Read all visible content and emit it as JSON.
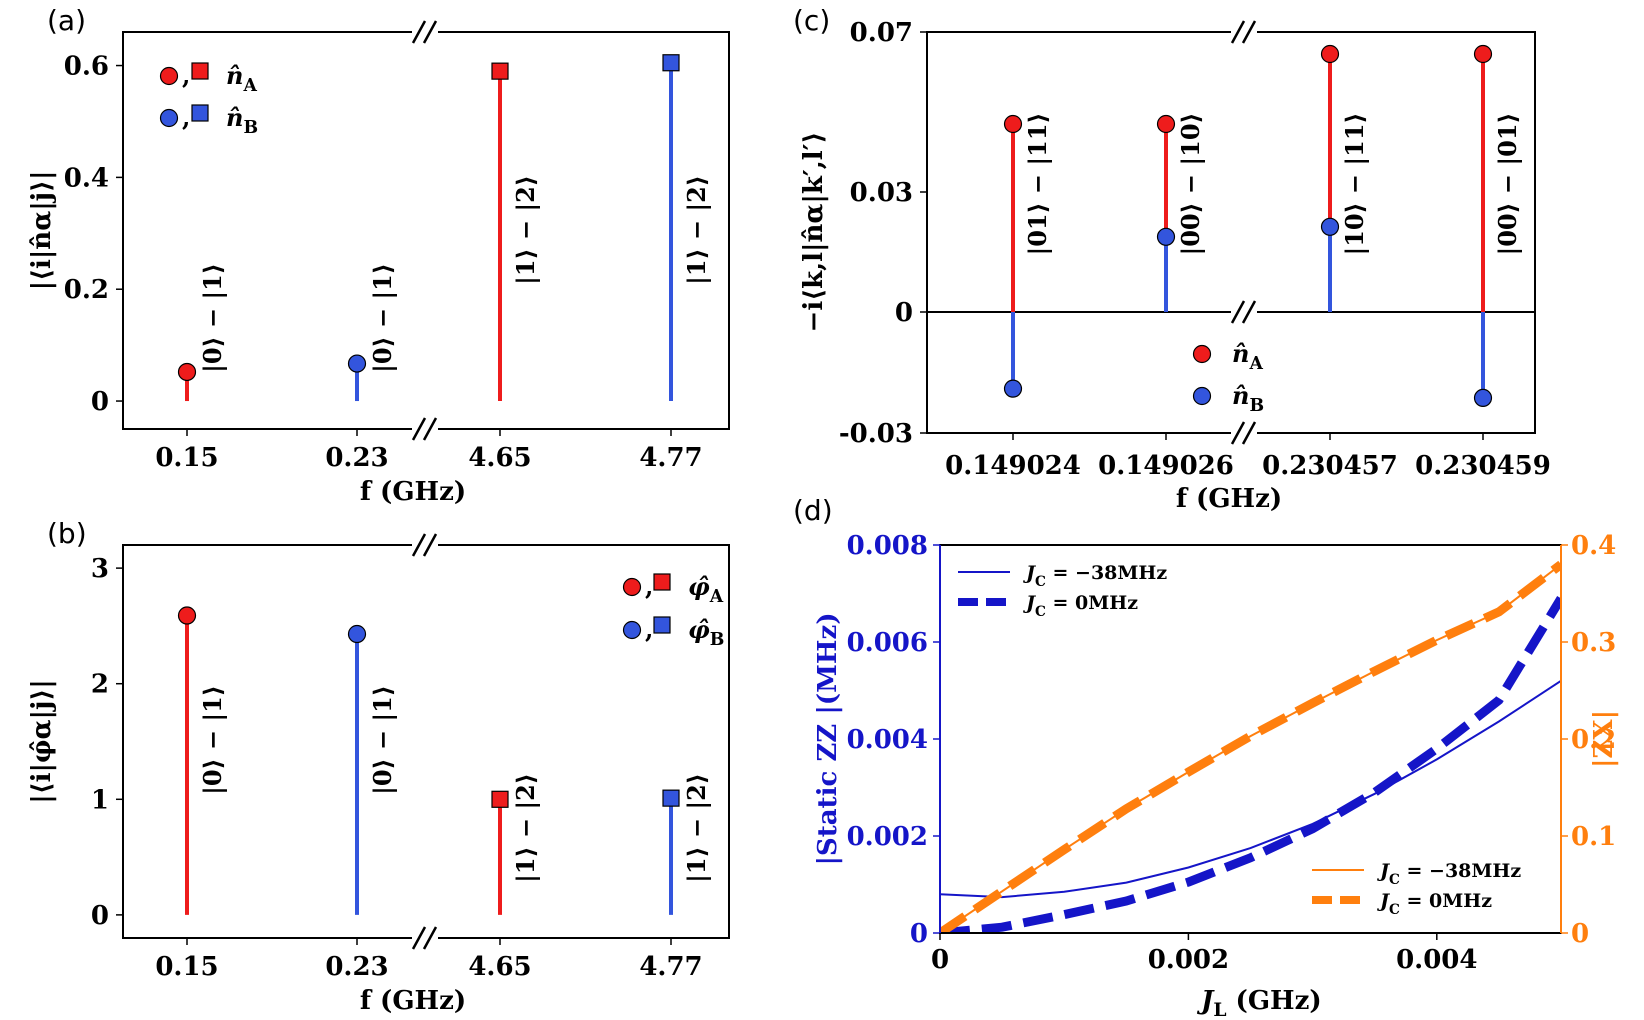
{
  "colors": {
    "red": "#ee1c1c",
    "blue": "#3355dd",
    "darkblue": "#1515c8",
    "orange": "#ff7f0e",
    "black": "#000000"
  },
  "chart_data": [
    {
      "panel_label": "(a)",
      "type": "stem",
      "xlabel": "f (GHz)",
      "ylabel": "|⟨i|n̂α|j⟩|",
      "ylim": [
        -0.05,
        0.66
      ],
      "yticks": [
        "0",
        "0.2",
        "0.4",
        "0.6"
      ],
      "categories": [
        "0.15",
        "0.23",
        "4.65",
        "4.77"
      ],
      "broken_x_axis": true,
      "stems": [
        {
          "x": "0.15",
          "value": 0.052,
          "series": "n̂A",
          "marker": "circle",
          "label": "|0⟩ − |1⟩"
        },
        {
          "x": "0.23",
          "value": 0.067,
          "series": "n̂B",
          "marker": "circle",
          "label": "|0⟩ − |1⟩"
        },
        {
          "x": "4.65",
          "value": 0.59,
          "series": "n̂A",
          "marker": "square",
          "label": "|1⟩ − |2⟩"
        },
        {
          "x": "4.77",
          "value": 0.605,
          "series": "n̂B",
          "marker": "square",
          "label": "|1⟩ − |2⟩"
        }
      ],
      "legend": [
        {
          "name": "n̂A",
          "sep": ",",
          "base": "n̂",
          "sub": "A",
          "color": "red"
        },
        {
          "name": "n̂B",
          "sep": ",",
          "base": "n̂",
          "sub": "B",
          "color": "blue"
        }
      ],
      "legend_position": "top-left"
    },
    {
      "panel_label": "(b)",
      "type": "stem",
      "xlabel": "f (GHz)",
      "ylabel": "|⟨i|φ̂α|j⟩|",
      "ylim": [
        -0.2,
        3.2
      ],
      "yticks": [
        "0",
        "1",
        "2",
        "3"
      ],
      "categories": [
        "0.15",
        "0.23",
        "4.65",
        "4.77"
      ],
      "broken_x_axis": true,
      "stems": [
        {
          "x": "0.15",
          "value": 2.59,
          "series": "φ̂A",
          "marker": "circle",
          "label": "|0⟩ − |1⟩"
        },
        {
          "x": "0.23",
          "value": 2.43,
          "series": "φ̂B",
          "marker": "circle",
          "label": "|0⟩ − |1⟩"
        },
        {
          "x": "4.65",
          "value": 1.0,
          "series": "φ̂A",
          "marker": "square",
          "label": "|1⟩ − |2⟩"
        },
        {
          "x": "4.77",
          "value": 1.01,
          "series": "φ̂B",
          "marker": "square",
          "label": "|1⟩ − |2⟩"
        }
      ],
      "legend": [
        {
          "name": "φ̂A",
          "sep": ",",
          "base": "φ̂",
          "sub": "A",
          "color": "red"
        },
        {
          "name": "φ̂B",
          "sep": ",",
          "base": "φ̂",
          "sub": "B",
          "color": "blue"
        }
      ],
      "legend_position": "top-right"
    },
    {
      "panel_label": "(c)",
      "type": "stem",
      "xlabel": "f (GHz)",
      "ylabel": "−i⟨k,l|n̂α|k′,l′⟩",
      "ylim": [
        -0.03,
        0.07
      ],
      "yticks": [
        "-0.03",
        "0",
        "0.03",
        "0.07"
      ],
      "categories": [
        "0.149024",
        "0.149026",
        "0.230457",
        "0.230459"
      ],
      "broken_x_axis": true,
      "broken_y_axis": true,
      "stems": [
        {
          "x": "0.149024",
          "a": 0.047,
          "b": -0.019,
          "label": "|01⟩ − |11⟩"
        },
        {
          "x": "0.149026",
          "a": 0.047,
          "b": 0.0188,
          "label": "|00⟩ − |10⟩"
        },
        {
          "x": "0.230457",
          "a": 0.0645,
          "b": 0.0213,
          "label": "|10⟩ − |11⟩"
        },
        {
          "x": "0.230459",
          "a": 0.0645,
          "b": -0.0213,
          "label": "|00⟩ − |01⟩"
        }
      ],
      "legend": [
        {
          "name": "n̂A",
          "base": "n̂",
          "sub": "A",
          "color": "red"
        },
        {
          "name": "n̂B",
          "base": "n̂",
          "sub": "B",
          "color": "blue"
        }
      ],
      "legend_position": "lower-center"
    },
    {
      "panel_label": "(d)",
      "type": "line",
      "xlabel": "JL (GHz)",
      "ylabel_left": "|Static ZZ |(MHz)",
      "ylabel_right": "|ZX|",
      "xlim": [
        0,
        0.005
      ],
      "xticks": [
        "0",
        "0.002",
        "0.004"
      ],
      "ylim_left": [
        0,
        0.008
      ],
      "yticks_left": [
        "0",
        "0.002",
        "0.004",
        "0.006",
        "0.008"
      ],
      "ylim_right": [
        0,
        0.4
      ],
      "yticks_right": [
        "0",
        "0.1",
        "0.2",
        "0.3",
        "0.4"
      ],
      "x": [
        0,
        0.0005,
        0.001,
        0.0015,
        0.002,
        0.0025,
        0.003,
        0.0035,
        0.004,
        0.0045,
        0.005
      ],
      "series": [
        {
          "name": "JC = −38MHz",
          "axis": "left",
          "color": "darkblue",
          "style": "solid",
          "values": [
            0.0008,
            0.00074,
            0.00085,
            0.00104,
            0.00135,
            0.00175,
            0.00225,
            0.00287,
            0.00358,
            0.00436,
            0.0052
          ]
        },
        {
          "name": "JC = 0MHz",
          "axis": "left",
          "color": "darkblue",
          "style": "dashed",
          "values": [
            0,
            0.00012,
            0.00038,
            0.00066,
            0.00105,
            0.00155,
            0.00215,
            0.0029,
            0.0038,
            0.0048,
            0.0069
          ]
        },
        {
          "name": "JC = −38MHz",
          "axis": "right",
          "color": "orange",
          "style": "solid",
          "values": [
            0,
            0.043,
            0.086,
            0.128,
            0.166,
            0.203,
            0.237,
            0.27,
            0.302,
            0.331,
            0.38
          ]
        },
        {
          "name": "JC = 0MHz",
          "axis": "right",
          "color": "orange",
          "style": "dashed",
          "values": [
            0,
            0.043,
            0.086,
            0.128,
            0.166,
            0.203,
            0.237,
            0.27,
            0.302,
            0.331,
            0.38
          ]
        }
      ],
      "legends": [
        {
          "position": "top-left",
          "entries": [
            {
              "name": "JC = −38MHz",
              "base": "J",
              "sub": "C",
              "rest": " = −38MHz",
              "color": "darkblue",
              "style": "solid"
            },
            {
              "name": "JC = 0MHz",
              "base": "J",
              "sub": "C",
              "rest": " = 0MHz",
              "color": "darkblue",
              "style": "dashed"
            }
          ]
        },
        {
          "position": "bottom-right",
          "entries": [
            {
              "name": "JC = −38MHz",
              "base": "J",
              "sub": "C",
              "rest": " = −38MHz",
              "color": "orange",
              "style": "solid"
            },
            {
              "name": "JC = 0MHz",
              "base": "J",
              "sub": "C",
              "rest": " = 0MHz",
              "color": "orange",
              "style": "dashed"
            }
          ]
        }
      ]
    }
  ]
}
